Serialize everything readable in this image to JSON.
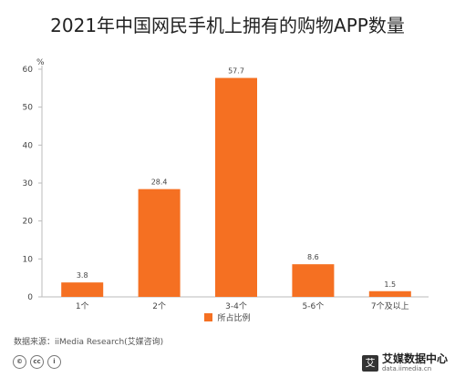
{
  "title": "2021年中国网民手机上拥有的购物APP数量",
  "source": "数据来源：iiMedia Research(艾媒咨询)",
  "brand": {
    "name": "艾媒数据中心",
    "site": "data.iimedia.cn",
    "logo_char": "艾"
  },
  "license_icons": [
    "©",
    "cc",
    "i"
  ],
  "colors": {
    "bar": "#F57022",
    "axis": "#bbbbbb",
    "text": "#444444"
  },
  "chart_data": {
    "type": "bar",
    "title": "2021年中国网民手机上拥有的购物APP数量",
    "unit_label": "%",
    "categories": [
      "1个",
      "2个",
      "3-4个",
      "5-6个",
      "7个及以上"
    ],
    "series": [
      {
        "name": "所占比例",
        "values": [
          3.8,
          28.4,
          57.7,
          8.6,
          1.5
        ]
      }
    ],
    "data_labels": [
      "3.8",
      "28.4",
      "57.7",
      "8.6",
      "1.5"
    ],
    "y_ticks": [
      "0",
      "10",
      "20",
      "30",
      "40",
      "50",
      "60"
    ],
    "ylim": [
      0,
      60
    ],
    "grid": false,
    "legend_position": "bottom"
  }
}
